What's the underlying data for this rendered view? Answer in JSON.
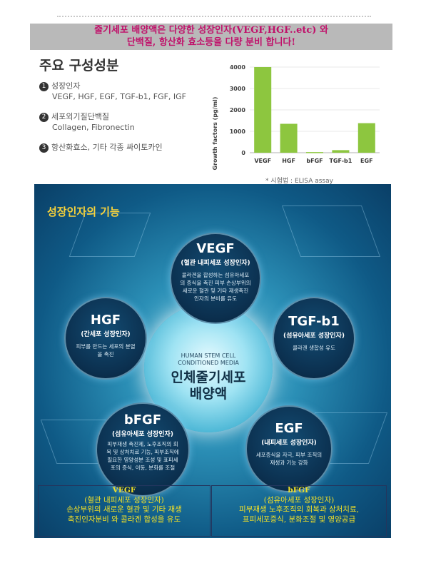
{
  "banner": {
    "line1": "줄기세포 배양액은 다양한 성장인자(VEGF,HGF..etc) 와",
    "line2": "단백질, 항산화 효소등을 다량 분비 합니다!"
  },
  "components": {
    "title": "주요 구성성분",
    "items": [
      {
        "num": "1",
        "label": "성장인자",
        "detail": "VEGF, HGF, EGF, TGF-b1, FGF, IGF"
      },
      {
        "num": "2",
        "label": "세포외기질단백질",
        "detail": "Collagen, Fibronectin"
      },
      {
        "num": "3",
        "label": "항산화효소, 기타 각종 싸이토카인",
        "detail": ""
      }
    ]
  },
  "chart_data": {
    "type": "bar",
    "categories": [
      "VEGF",
      "HGF",
      "bFGF",
      "TGF-b1",
      "EGF"
    ],
    "values": [
      4000,
      1350,
      30,
      120,
      1380
    ],
    "ylabel": "Growth factors (pg/ml)",
    "ylim": [
      0,
      4000
    ],
    "yticks": [
      "0",
      "1000",
      "2000",
      "3000",
      "4000"
    ],
    "note": "* 시험법 : ELISA assay",
    "bar_color": "#8dc63f"
  },
  "panel": {
    "title": "성장인자의 기능",
    "center_en_1": "HUMAN STEM CELL",
    "center_en_2": "CONDITIONED MEDIA",
    "center_ko_1": "인체줄기세포",
    "center_ko_2": "배양액",
    "nodes": [
      {
        "name": "VEGF",
        "role": "(혈관 내피세포 성장인자)",
        "desc": "콜라겐을 합성하는 섬유아세포의 증식을 촉진 피부 손상부위의 새로운 혈관 및 기타 재생촉진 인자의 분비를 유도"
      },
      {
        "name": "HGF",
        "role": "(간세포 성장인자)",
        "desc": "피부를 만드는 세포의 분열을 촉진"
      },
      {
        "name": "TGF-b1",
        "role": "(섬유아세포 성장인자)",
        "desc": "콜라겐 생합성 유도"
      },
      {
        "name": "bFGF",
        "role": "(섬유아세포 성장인자)",
        "desc": "피부재생 촉진제, 노후조직의 회복 및 상처치료 기능, 피부조직에 필요한 영양성분 조성 및 표피세포의 증식, 이동, 분화를 조절"
      },
      {
        "name": "EGF",
        "role": "(내피세포 성장인자)",
        "desc": "세포증식을 자극, 피부 조직의 재생과 기능 강화"
      }
    ]
  },
  "info_boxes": [
    {
      "title": "VEGF",
      "role": "(혈관 내피세포 성장인자)",
      "line1": "손상부위의 새로운 혈관 및 기타 재생",
      "line2": "촉진인자분비 와 콜라겐 합성을 유도"
    },
    {
      "title": "bFGF",
      "role": "(섬유아세포 성장인자)",
      "line1": "피부재생 노후조직의 회복과 상처치료,",
      "line2": "표피세포증식, 분화조절 및 영양공급"
    }
  ]
}
